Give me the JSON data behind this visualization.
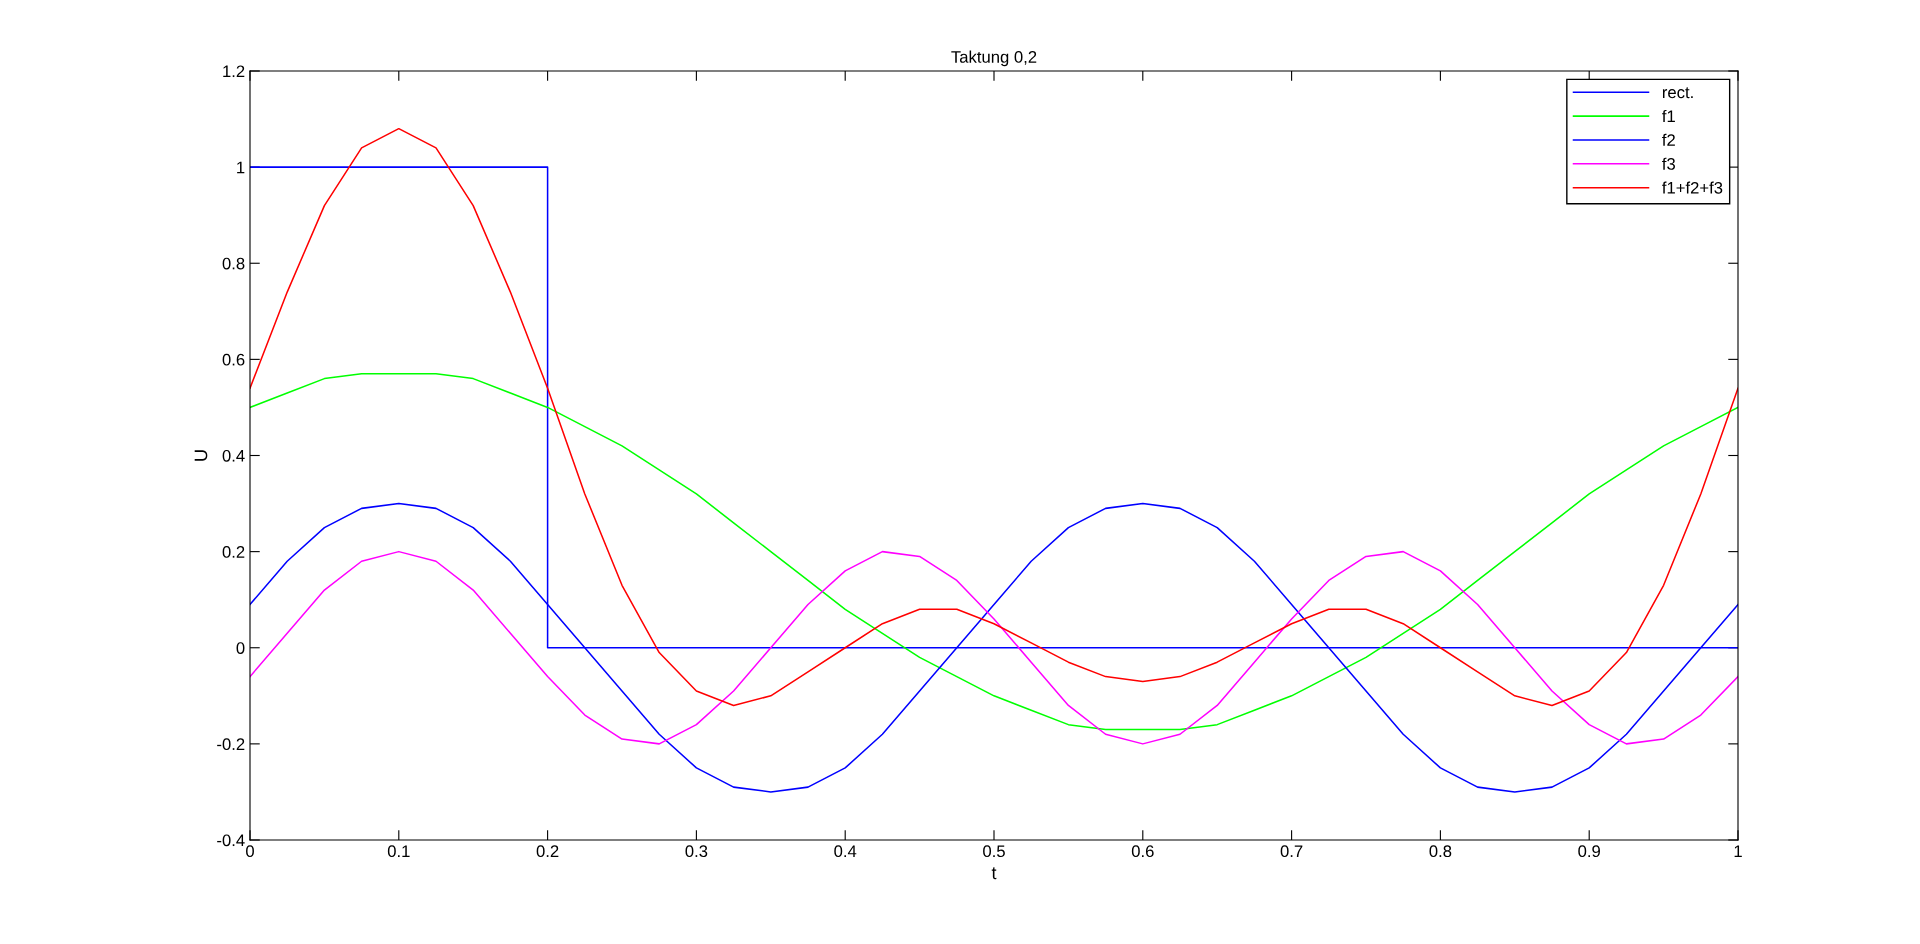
{
  "chart_data": {
    "type": "line",
    "title": "Taktung 0,2",
    "xlabel": "t",
    "ylabel": "U",
    "x": [
      0,
      0.025,
      0.05,
      0.075,
      0.1,
      0.125,
      0.15,
      0.175,
      0.2,
      0.225,
      0.25,
      0.275,
      0.3,
      0.325,
      0.35,
      0.375,
      0.4,
      0.425,
      0.45,
      0.475,
      0.5,
      0.525,
      0.55,
      0.575,
      0.6,
      0.625,
      0.65,
      0.675,
      0.7,
      0.725,
      0.75,
      0.775,
      0.8,
      0.825,
      0.85,
      0.875,
      0.9,
      0.925,
      0.95,
      0.975,
      1
    ],
    "series": [
      {
        "name": "rect.",
        "color": "#0000ff",
        "x": [
          0,
          0.2,
          0.2,
          1
        ],
        "values": [
          1,
          1,
          0,
          0
        ]
      },
      {
        "name": "f1",
        "color": "#00ff00",
        "values": [
          0.5,
          0.53,
          0.56,
          0.57,
          0.57,
          0.57,
          0.56,
          0.53,
          0.5,
          0.46,
          0.42,
          0.37,
          0.32,
          0.26,
          0.2,
          0.14,
          0.08,
          0.03,
          -0.02,
          -0.06,
          -0.1,
          -0.13,
          -0.16,
          -0.17,
          -0.17,
          -0.17,
          -0.16,
          -0.13,
          -0.1,
          -0.06,
          -0.02,
          0.03,
          0.08,
          0.14,
          0.2,
          0.26,
          0.32,
          0.37,
          0.42,
          0.46,
          0.5
        ]
      },
      {
        "name": "f2",
        "color": "#0000ff",
        "values": [
          0.09,
          0.18,
          0.25,
          0.29,
          0.3,
          0.29,
          0.25,
          0.18,
          0.09,
          0,
          -0.09,
          -0.18,
          -0.25,
          -0.29,
          -0.3,
          -0.29,
          -0.25,
          -0.18,
          -0.09,
          0,
          0.09,
          0.18,
          0.25,
          0.29,
          0.3,
          0.29,
          0.25,
          0.18,
          0.09,
          0,
          -0.09,
          -0.18,
          -0.25,
          -0.29,
          -0.3,
          -0.29,
          -0.25,
          -0.18,
          -0.09,
          0,
          0.09
        ]
      },
      {
        "name": "f3",
        "color": "#ff00ff",
        "values": [
          -0.06,
          0.03,
          0.12,
          0.18,
          0.2,
          0.18,
          0.12,
          0.03,
          -0.06,
          -0.14,
          -0.19,
          -0.2,
          -0.16,
          -0.09,
          0,
          0.09,
          0.16,
          0.2,
          0.19,
          0.14,
          0.06,
          -0.03,
          -0.12,
          -0.18,
          -0.2,
          -0.18,
          -0.12,
          -0.03,
          0.06,
          0.14,
          0.19,
          0.2,
          0.16,
          0.09,
          0,
          -0.09,
          -0.16,
          -0.2,
          -0.19,
          -0.14,
          -0.06
        ]
      },
      {
        "name": "f1+f2+f3",
        "color": "#ff0000",
        "values": [
          0.54,
          0.74,
          0.92,
          1.04,
          1.08,
          1.04,
          0.92,
          0.74,
          0.54,
          0.32,
          0.13,
          -0.01,
          -0.09,
          -0.12,
          -0.1,
          -0.05,
          0,
          0.05,
          0.08,
          0.08,
          0.05,
          0.01,
          -0.03,
          -0.06,
          -0.07,
          -0.06,
          -0.03,
          0.01,
          0.05,
          0.08,
          0.08,
          0.05,
          0,
          -0.05,
          -0.1,
          -0.12,
          -0.09,
          -0.01,
          0.13,
          0.32,
          0.54
        ]
      }
    ],
    "xlim": [
      0,
      1
    ],
    "xticks": [
      0,
      0.1,
      0.2,
      0.3,
      0.4,
      0.5,
      0.6,
      0.7,
      0.8,
      0.9,
      1
    ],
    "ylim": [
      -0.4,
      1.2
    ],
    "yticks": [
      -0.4,
      -0.2,
      0,
      0.2,
      0.4,
      0.6,
      0.8,
      1,
      1.2
    ],
    "grid": false,
    "legend": "top right",
    "marker": "none",
    "line_style": "solid"
  }
}
